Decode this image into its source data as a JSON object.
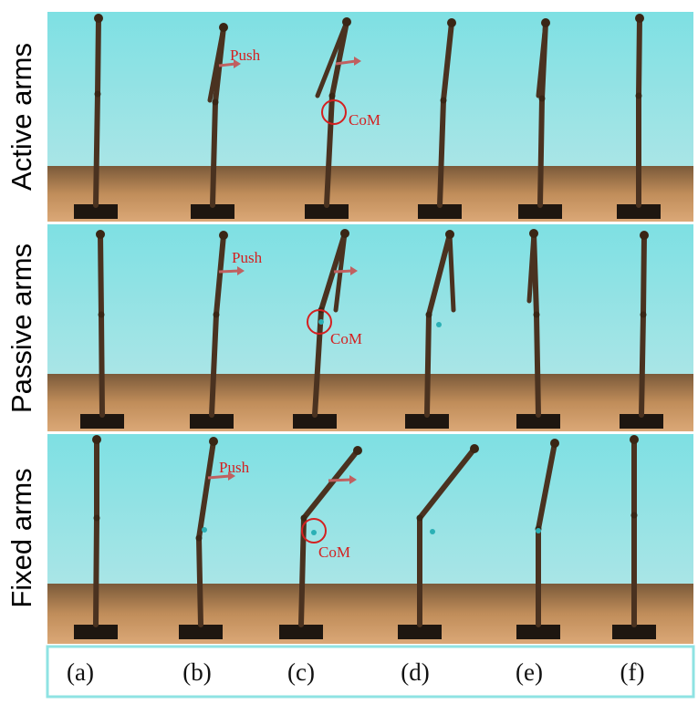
{
  "rows": [
    {
      "label": "Active arms",
      "push": "Push",
      "com": "CoM"
    },
    {
      "label": "Passive arms",
      "push": "Push",
      "com": "CoM"
    },
    {
      "label": "Fixed arms",
      "push": "Push",
      "com": "CoM"
    }
  ],
  "panels": [
    "(a)",
    "(b)",
    "(c)",
    "(d)",
    "(e)",
    "(f)"
  ]
}
